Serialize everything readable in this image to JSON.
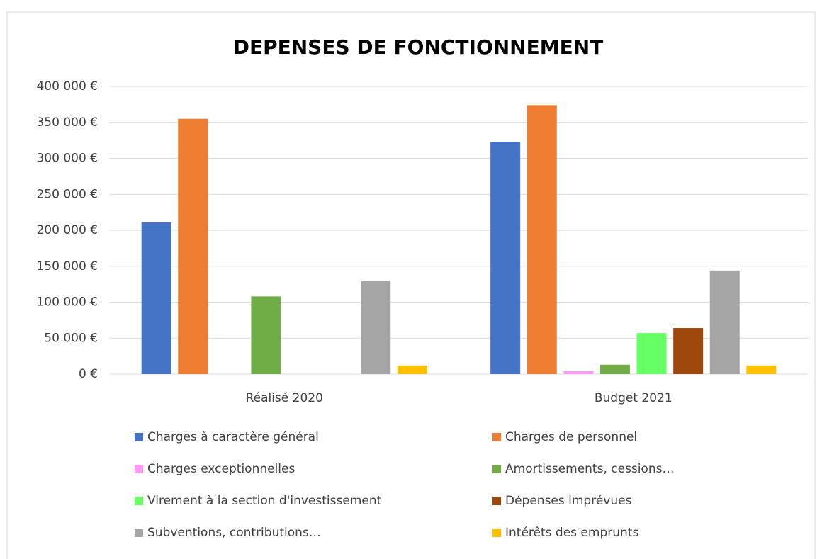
{
  "chart_data": {
    "type": "bar",
    "title": "DEPENSES DE FONCTIONNEMENT",
    "categories": [
      "Réalisé 2020",
      "Budget 2021"
    ],
    "series": [
      {
        "name": "Charges à caractère général",
        "color": "#4472c4",
        "values": [
          211000,
          323000
        ]
      },
      {
        "name": "Charges de personnel",
        "color": "#ed7d31",
        "values": [
          355000,
          374000
        ]
      },
      {
        "name": "Charges exceptionnelles",
        "color": "#ff99f5",
        "values": [
          0,
          4000
        ]
      },
      {
        "name": "Amortissements, cessions…",
        "color": "#70ad47",
        "values": [
          108000,
          13000
        ]
      },
      {
        "name": "Virement à la section d'investissement",
        "color": "#66ff66",
        "values": [
          0,
          57000
        ]
      },
      {
        "name": "Dépenses imprévues",
        "color": "#9e480e",
        "values": [
          0,
          64000
        ]
      },
      {
        "name": "Subventions, contributions…",
        "color": "#a5a5a5",
        "values": [
          130000,
          144000
        ]
      },
      {
        "name": "Intérêts des emprunts",
        "color": "#ffc000",
        "values": [
          12000,
          12000
        ]
      }
    ],
    "ylim": [
      0,
      400000
    ],
    "yticks": [
      {
        "value": 0,
        "label": "0 €"
      },
      {
        "value": 50000,
        "label": "50 000 €"
      },
      {
        "value": 100000,
        "label": "100 000 €"
      },
      {
        "value": 150000,
        "label": "150 000 €"
      },
      {
        "value": 200000,
        "label": "200 000 €"
      },
      {
        "value": 250000,
        "label": "250 000 €"
      },
      {
        "value": 300000,
        "label": "300 000 €"
      },
      {
        "value": 350000,
        "label": "350 000 €"
      },
      {
        "value": 400000,
        "label": "400 000 €"
      }
    ],
    "grid": true
  }
}
